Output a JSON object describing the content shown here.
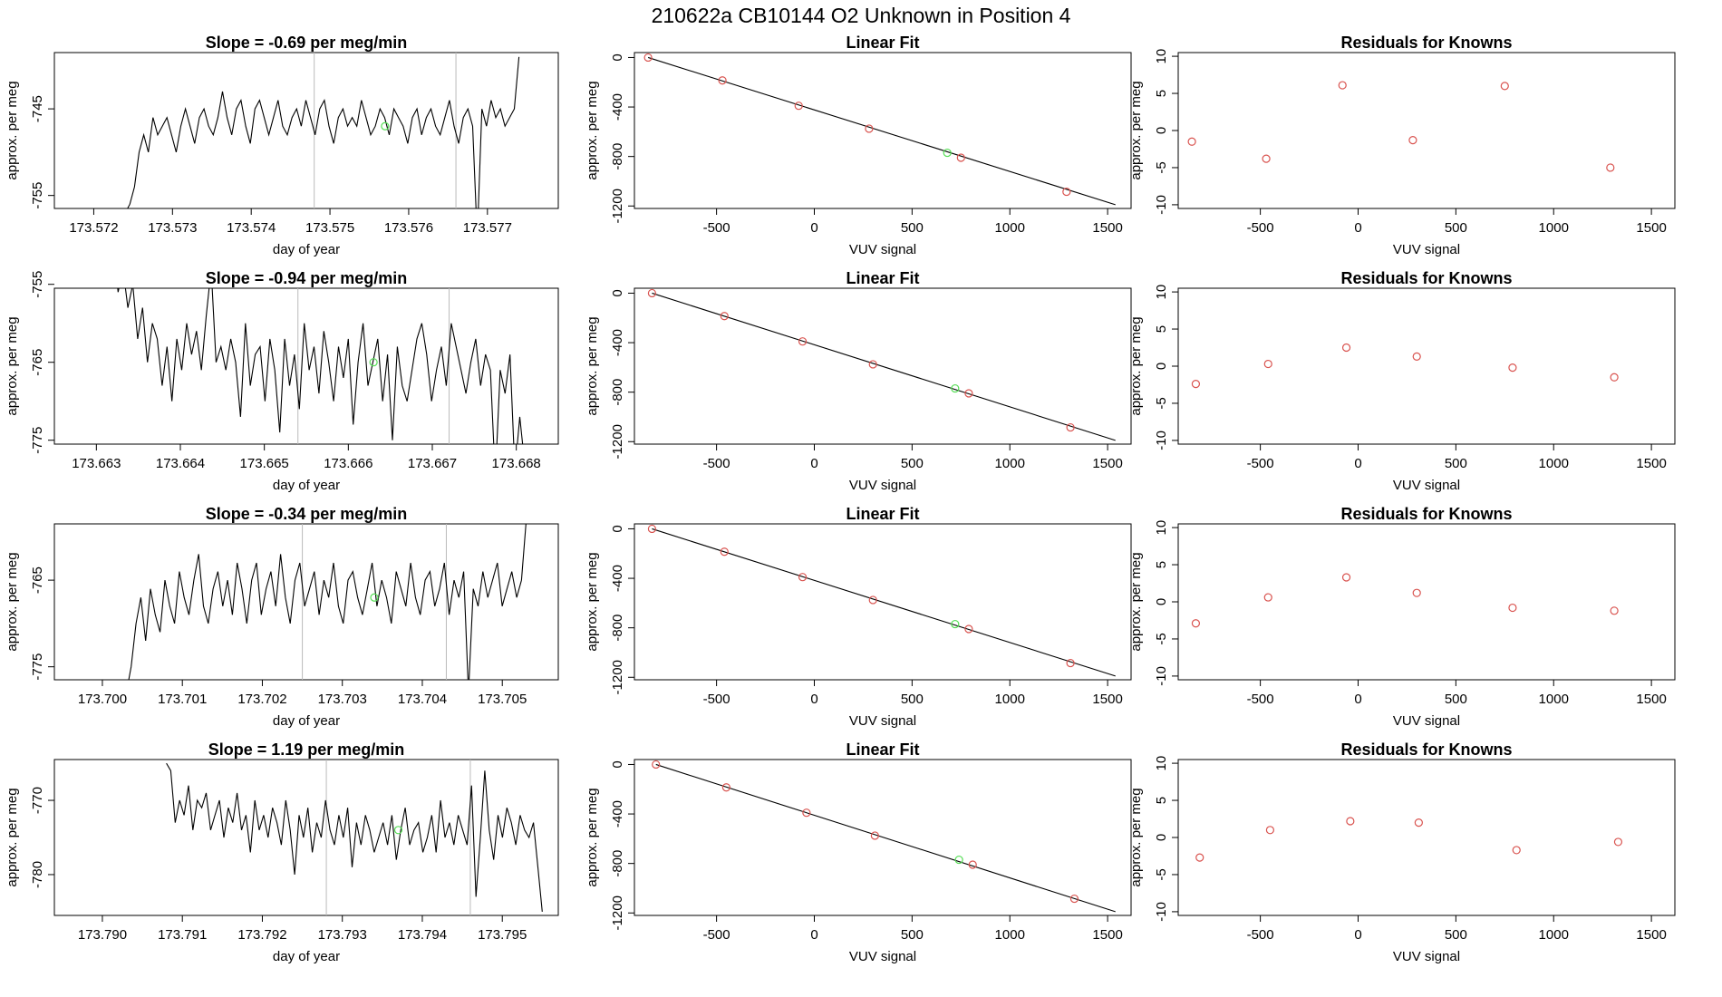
{
  "figure": {
    "title": "210622a      CB10144    O2 Unknown in Position  4"
  },
  "colors": {
    "known_points": "#d9534f",
    "unknown_point": "#55dd55",
    "line": "#000000",
    "cursor": "#bbbbbb"
  },
  "chart_data": [
    {
      "type": "line",
      "title": "Slope =  -0.69  per meg/min",
      "xlabel": "day of year",
      "ylabel": "approx. per meg",
      "xticks": [
        "173.572",
        "173.573",
        "173.574",
        "173.575",
        "173.576",
        "173.577"
      ],
      "xlim": [
        173.5715,
        173.5779
      ],
      "yticks": [
        "-745",
        "-755"
      ],
      "ylim": [
        -756.5,
        -738.5
      ],
      "series": [
        {
          "x_start": 173.5724,
          "x_end": 173.5774,
          "values": [
            -757,
            -756,
            -754,
            -750,
            -748,
            -750,
            -746,
            -748,
            -747,
            -746,
            -748,
            -750,
            -747,
            -745,
            -747,
            -749,
            -746,
            -745,
            -747,
            -748,
            -746,
            -743,
            -746,
            -748,
            -745,
            -744,
            -747,
            -749,
            -745,
            -744,
            -746,
            -748,
            -746,
            -744,
            -747,
            -748,
            -746,
            -745,
            -747,
            -744,
            -746,
            -748,
            -745,
            -744,
            -747,
            -749,
            -746,
            -745,
            -747,
            -746,
            -747,
            -744,
            -746,
            -748,
            -747,
            -745,
            -746,
            -748,
            -745,
            -746,
            -747,
            -749,
            -746,
            -745,
            -748,
            -746,
            -745,
            -747,
            -748,
            -746,
            -744,
            -747,
            -749,
            -746,
            -745,
            -747,
            -760,
            -745,
            -747,
            -744,
            -746,
            -745,
            -747,
            -746,
            -745,
            -739
          ]
        }
      ],
      "unknown_marker": {
        "x": 173.5757,
        "y": -747
      },
      "cursor_lines": [
        173.5748,
        173.5766
      ]
    },
    {
      "type": "scatter",
      "title": "Linear Fit",
      "xlabel": "VUV signal",
      "ylabel": "approx. per meg",
      "xticks": [
        "-500",
        "0",
        "500",
        "1000",
        "1500"
      ],
      "xlim": [
        -920,
        1620
      ],
      "yticks": [
        "0",
        "-400",
        "-800",
        "-1200"
      ],
      "ylim": [
        -1220,
        40
      ],
      "knowns": [
        [
          -850,
          0
        ],
        [
          -470,
          -185
        ],
        [
          -80,
          -390
        ],
        [
          280,
          -575
        ],
        [
          750,
          -810
        ],
        [
          1290,
          -1085
        ]
      ],
      "unknown": [
        680,
        -770
      ],
      "fit_line": [
        [
          -850,
          0
        ],
        [
          1540,
          -1190
        ]
      ]
    },
    {
      "type": "scatter",
      "title": "Residuals for Knowns",
      "xlabel": "VUV signal",
      "ylabel": "approx. per meg",
      "xticks": [
        "-500",
        "0",
        "500",
        "1000",
        "1500"
      ],
      "xlim": [
        -920,
        1620
      ],
      "yticks": [
        "10",
        "5",
        "0",
        "-5",
        "-10"
      ],
      "ylim": [
        -10.5,
        10.5
      ],
      "knowns": [
        [
          -850,
          -1.5
        ],
        [
          -470,
          -3.8
        ],
        [
          -80,
          6.1
        ],
        [
          280,
          -1.3
        ],
        [
          750,
          6.0
        ],
        [
          1290,
          -5.0
        ]
      ]
    },
    {
      "type": "line",
      "title": "Slope =  -0.94  per meg/min",
      "xlabel": "day of year",
      "ylabel": "approx. per meg",
      "xticks": [
        "173.663",
        "173.664",
        "173.665",
        "173.666",
        "173.667",
        "173.668"
      ],
      "xlim": [
        173.6625,
        173.6685
      ],
      "yticks": [
        "-755",
        "-765",
        "-775"
      ],
      "ylim": [
        -775.5,
        -755.5
      ],
      "series": [
        {
          "x_start": 173.6632,
          "x_end": 173.6681,
          "values": [
            -750,
            -756,
            -753,
            -758,
            -755,
            -762,
            -758,
            -765,
            -760,
            -762,
            -768,
            -763,
            -770,
            -762,
            -766,
            -760,
            -764,
            -761,
            -766,
            -759,
            -753,
            -765,
            -763,
            -766,
            -762,
            -765,
            -772,
            -760,
            -768,
            -764,
            -763,
            -770,
            -762,
            -766,
            -774,
            -762,
            -768,
            -764,
            -771,
            -760,
            -766,
            -763,
            -769,
            -761,
            -765,
            -770,
            -763,
            -767,
            -762,
            -773,
            -765,
            -760,
            -768,
            -765,
            -762,
            -770,
            -764,
            -775,
            -763,
            -768,
            -770,
            -766,
            -762,
            -760,
            -764,
            -770,
            -766,
            -763,
            -768,
            -760,
            -763,
            -766,
            -769,
            -765,
            -762,
            -768,
            -764,
            -766,
            -780,
            -766,
            -769,
            -764,
            -779,
            -772,
            -778
          ]
        }
      ],
      "unknown_marker": {
        "x": 173.6663,
        "y": -765
      },
      "cursor_lines": [
        173.6654,
        173.6672
      ]
    },
    {
      "type": "scatter",
      "title": "Linear Fit",
      "xlabel": "VUV signal",
      "ylabel": "approx. per meg",
      "xticks": [
        "-500",
        "0",
        "500",
        "1000",
        "1500"
      ],
      "xlim": [
        -920,
        1620
      ],
      "yticks": [
        "0",
        "-400",
        "-800",
        "-1200"
      ],
      "ylim": [
        -1220,
        40
      ],
      "knowns": [
        [
          -830,
          0
        ],
        [
          -460,
          -185
        ],
        [
          -60,
          -390
        ],
        [
          300,
          -575
        ],
        [
          790,
          -810
        ],
        [
          1310,
          -1085
        ]
      ],
      "unknown": [
        720,
        -770
      ],
      "fit_line": [
        [
          -830,
          0
        ],
        [
          1540,
          -1190
        ]
      ]
    },
    {
      "type": "scatter",
      "title": "Residuals for Knowns",
      "xlabel": "VUV signal",
      "ylabel": "approx. per meg",
      "xticks": [
        "-500",
        "0",
        "500",
        "1000",
        "1500"
      ],
      "xlim": [
        -920,
        1620
      ],
      "yticks": [
        "10",
        "5",
        "0",
        "-5",
        "-10"
      ],
      "ylim": [
        -10.5,
        10.5
      ],
      "knowns": [
        [
          -830,
          -2.4
        ],
        [
          -460,
          0.3
        ],
        [
          -60,
          2.5
        ],
        [
          300,
          1.3
        ],
        [
          790,
          -0.2
        ],
        [
          1310,
          -1.5
        ]
      ]
    },
    {
      "type": "line",
      "title": "Slope =  -0.34  per meg/min",
      "xlabel": "day of year",
      "ylabel": "approx. per meg",
      "xticks": [
        "173.700",
        "173.701",
        "173.702",
        "173.703",
        "173.704",
        "173.705"
      ],
      "xlim": [
        173.6994,
        173.7057
      ],
      "yticks": [
        "-765",
        "-775"
      ],
      "ylim": [
        -776.5,
        -758.5
      ],
      "series": [
        {
          "x_start": 173.7003,
          "x_end": 173.7053,
          "values": [
            -778,
            -775,
            -770,
            -767,
            -772,
            -766,
            -769,
            -771,
            -765,
            -768,
            -770,
            -764,
            -767,
            -769,
            -765,
            -762,
            -768,
            -770,
            -766,
            -764,
            -768,
            -765,
            -769,
            -763,
            -766,
            -770,
            -765,
            -763,
            -769,
            -766,
            -764,
            -768,
            -762,
            -767,
            -770,
            -765,
            -763,
            -768,
            -766,
            -764,
            -769,
            -765,
            -767,
            -763,
            -768,
            -770,
            -765,
            -764,
            -767,
            -769,
            -766,
            -763,
            -768,
            -765,
            -767,
            -770,
            -764,
            -766,
            -768,
            -763,
            -767,
            -769,
            -765,
            -764,
            -768,
            -766,
            -763,
            -769,
            -765,
            -767,
            -764,
            -778,
            -766,
            -768,
            -764,
            -767,
            -765,
            -763,
            -768,
            -766,
            -764,
            -767,
            -765,
            -758
          ]
        }
      ],
      "unknown_marker": {
        "x": 173.7034,
        "y": -767
      },
      "cursor_lines": [
        173.7025,
        173.7043
      ]
    },
    {
      "type": "scatter",
      "title": "Linear Fit",
      "xlabel": "VUV signal",
      "ylabel": "approx. per meg",
      "xticks": [
        "-500",
        "0",
        "500",
        "1000",
        "1500"
      ],
      "xlim": [
        -920,
        1620
      ],
      "yticks": [
        "0",
        "-400",
        "-800",
        "-1200"
      ],
      "ylim": [
        -1220,
        40
      ],
      "knowns": [
        [
          -830,
          0
        ],
        [
          -460,
          -185
        ],
        [
          -60,
          -390
        ],
        [
          300,
          -575
        ],
        [
          790,
          -810
        ],
        [
          1310,
          -1085
        ]
      ],
      "unknown": [
        720,
        -770
      ],
      "fit_line": [
        [
          -830,
          0
        ],
        [
          1540,
          -1190
        ]
      ]
    },
    {
      "type": "scatter",
      "title": "Residuals for Knowns",
      "xlabel": "VUV signal",
      "ylabel": "approx. per meg",
      "xticks": [
        "-500",
        "0",
        "500",
        "1000",
        "1500"
      ],
      "xlim": [
        -920,
        1620
      ],
      "yticks": [
        "10",
        "5",
        "0",
        "-5",
        "-10"
      ],
      "ylim": [
        -10.5,
        10.5
      ],
      "knowns": [
        [
          -830,
          -2.9
        ],
        [
          -460,
          0.6
        ],
        [
          -60,
          3.3
        ],
        [
          300,
          1.2
        ],
        [
          790,
          -0.8
        ],
        [
          1310,
          -1.2
        ]
      ]
    },
    {
      "type": "line",
      "title": "Slope =  1.19  per meg/min",
      "xlabel": "day of year",
      "ylabel": "approx. per meg",
      "xticks": [
        "173.790",
        "173.791",
        "173.792",
        "173.793",
        "173.794",
        "173.795"
      ],
      "xlim": [
        173.7894,
        173.7957
      ],
      "yticks": [
        "-770",
        "-780"
      ],
      "ylim": [
        -785.5,
        -764.5
      ],
      "series": [
        {
          "x_start": 173.7908,
          "x_end": 173.7955,
          "values": [
            -765,
            -766,
            -773,
            -770,
            -772,
            -768,
            -774,
            -770,
            -771,
            -769,
            -774,
            -772,
            -770,
            -775,
            -771,
            -773,
            -769,
            -774,
            -772,
            -777,
            -770,
            -774,
            -772,
            -775,
            -771,
            -773,
            -776,
            -770,
            -774,
            -780,
            -772,
            -775,
            -771,
            -777,
            -773,
            -775,
            -770,
            -774,
            -776,
            -772,
            -775,
            -771,
            -779,
            -773,
            -776,
            -772,
            -774,
            -777,
            -775,
            -773,
            -776,
            -772,
            -778,
            -774,
            -771,
            -776,
            -774,
            -773,
            -777,
            -775,
            -772,
            -777,
            -770,
            -775,
            -773,
            -776,
            -772,
            -774,
            -776,
            -768,
            -783,
            -775,
            -766,
            -774,
            -778,
            -772,
            -775,
            -771,
            -773,
            -776,
            -772,
            -774,
            -775,
            -773,
            -779,
            -785
          ]
        }
      ],
      "unknown_marker": {
        "x": 173.7937,
        "y": -774
      },
      "cursor_lines": [
        173.7928,
        173.7946
      ]
    },
    {
      "type": "scatter",
      "title": "Linear Fit",
      "xlabel": "VUV signal",
      "ylabel": "approx. per meg",
      "xticks": [
        "-500",
        "0",
        "500",
        "1000",
        "1500"
      ],
      "xlim": [
        -920,
        1620
      ],
      "yticks": [
        "0",
        "-400",
        "-800",
        "-1200"
      ],
      "ylim": [
        -1220,
        40
      ],
      "knowns": [
        [
          -810,
          0
        ],
        [
          -450,
          -185
        ],
        [
          -40,
          -390
        ],
        [
          310,
          -575
        ],
        [
          810,
          -810
        ],
        [
          1330,
          -1085
        ]
      ],
      "unknown": [
        740,
        -770
      ],
      "fit_line": [
        [
          -810,
          0
        ],
        [
          1540,
          -1190
        ]
      ]
    },
    {
      "type": "scatter",
      "title": "Residuals for Knowns",
      "xlabel": "VUV signal",
      "ylabel": "approx. per meg",
      "xticks": [
        "-500",
        "0",
        "500",
        "1000",
        "1500"
      ],
      "xlim": [
        -920,
        1620
      ],
      "yticks": [
        "10",
        "5",
        "0",
        "-5",
        "-10"
      ],
      "ylim": [
        -10.5,
        10.5
      ],
      "knowns": [
        [
          -810,
          -2.7
        ],
        [
          -450,
          1.0
        ],
        [
          -40,
          2.2
        ],
        [
          310,
          2.0
        ],
        [
          810,
          -1.7
        ],
        [
          1330,
          -0.6
        ]
      ]
    }
  ]
}
